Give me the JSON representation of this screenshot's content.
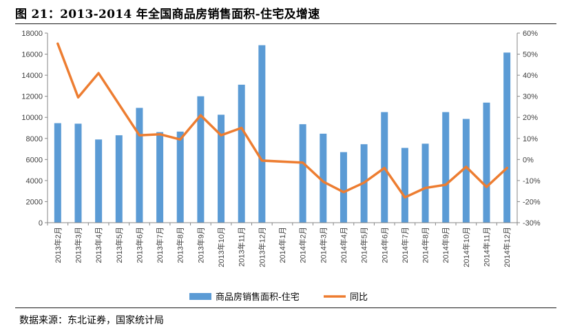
{
  "header": {
    "title": "图 21：2013-2014 年全国商品房销售面积-住宅及增速"
  },
  "footer": {
    "source": "数据来源：东北证券，国家统计局"
  },
  "colors": {
    "bar": "#5B9BD5",
    "line": "#ED7D31",
    "axis": "#868686",
    "text": "#404040"
  },
  "chart_data": {
    "type": "bar",
    "title": "2013-2014 年全国商品房销售面积-住宅及增速",
    "categories": [
      "2013年2月",
      "2013年3月",
      "2013年4月",
      "2013年5月",
      "2013年6月",
      "2013年7月",
      "2013年8月",
      "2013年9月",
      "2013年10月",
      "2013年11月",
      "2013年12月",
      "2014年1月",
      "2014年2月",
      "2014年3月",
      "2014年4月",
      "2014年5月",
      "2014年6月",
      "2014年7月",
      "2014年8月",
      "2014年9月",
      "2014年10月",
      "2014年11月",
      "2014年12月"
    ],
    "left_axis": {
      "ylim": [
        0,
        18000
      ],
      "ticks": [
        "0",
        "2000",
        "4000",
        "6000",
        "8000",
        "10000",
        "12000",
        "14000",
        "16000",
        "18000"
      ]
    },
    "right_axis": {
      "ylim": [
        -30,
        60
      ],
      "ticks": [
        "-30%",
        "-20%",
        "-10%",
        "0%",
        "10%",
        "20%",
        "30%",
        "40%",
        "50%",
        "60%"
      ]
    },
    "series": [
      {
        "name": "商品房销售面积-住宅",
        "type": "bar",
        "axis": "left",
        "values": [
          9450,
          9400,
          7900,
          8300,
          10900,
          8600,
          8650,
          12000,
          10250,
          13100,
          16850,
          null,
          9350,
          8450,
          6700,
          7450,
          10500,
          7100,
          7500,
          10500,
          9850,
          11400,
          16150
        ]
      },
      {
        "name": "同比",
        "type": "line",
        "axis": "right",
        "values": [
          55,
          29.5,
          41,
          null,
          11.5,
          12,
          9.5,
          21,
          11.5,
          15,
          -0.5,
          null,
          -1.5,
          -10.5,
          -15.5,
          -11,
          -4,
          -18,
          -13.5,
          -12,
          -3.5,
          -13,
          -4
        ]
      }
    ],
    "legend": {
      "placement": "bottom-center",
      "entries": [
        "商品房销售面积-住宅",
        "同比"
      ]
    },
    "grid": false
  }
}
